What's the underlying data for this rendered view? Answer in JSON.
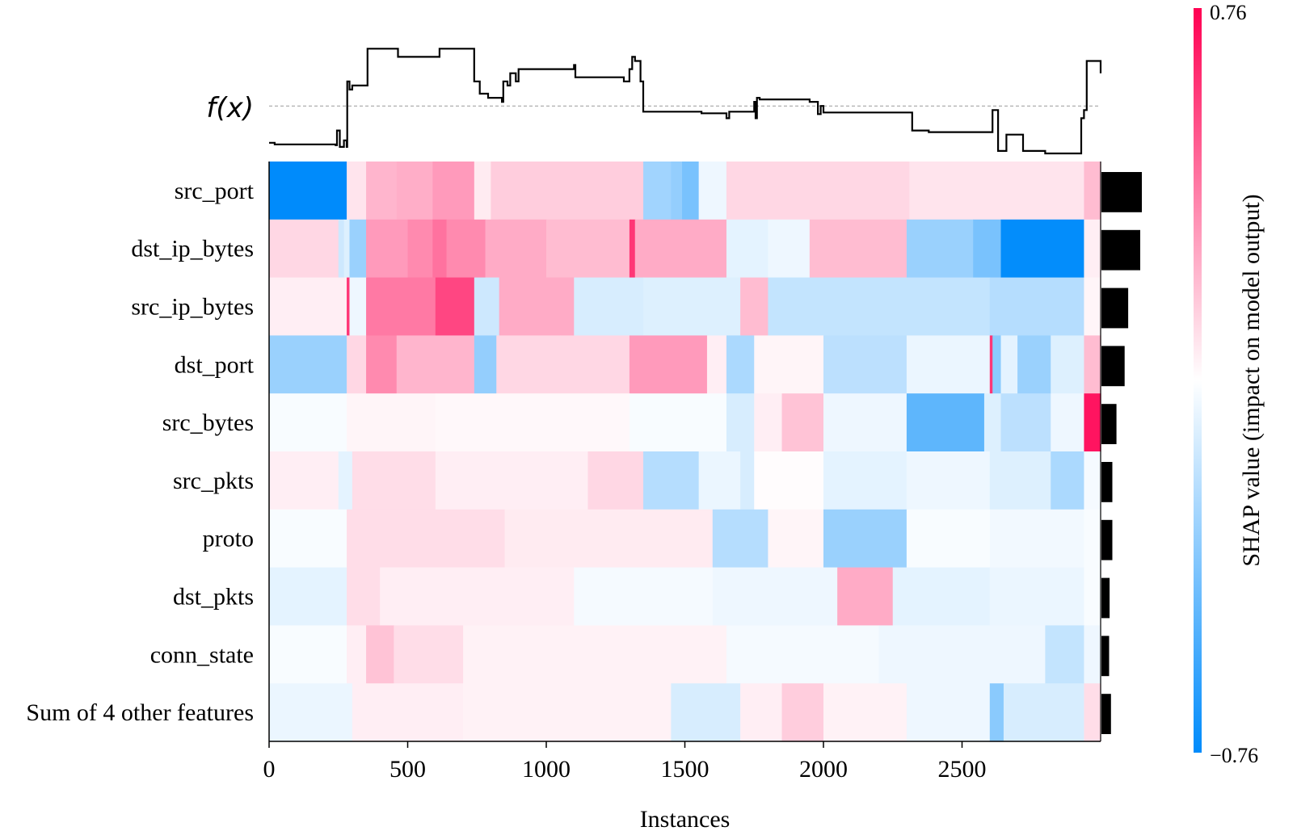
{
  "chart_data": {
    "type": "heatmap",
    "title": "",
    "xlabel": "Instances",
    "fx_label": "f(x)",
    "colorbar_label": "SHAP value (impact on model output)",
    "colorbar_max_label": "0.76",
    "colorbar_min_label": "−0.76",
    "color_range": [
      -0.76,
      0.76
    ],
    "colors": {
      "negative": "#008bfb",
      "positive": "#ff0052",
      "neutral": "#ffffff",
      "line": "#000000",
      "bar": "#000000",
      "baseline": "#999999"
    },
    "n_instances": 3000,
    "x_ticks": [
      0,
      500,
      1000,
      1500,
      2000,
      2500
    ],
    "x_tick_labels": [
      "0",
      "500",
      "1000",
      "1500",
      "2000",
      "2500"
    ],
    "fx_ylim": [
      -0.6,
      0.9
    ],
    "fx_base_value": 0.0,
    "fx_series": [
      [
        0,
        -0.45
      ],
      [
        20,
        -0.47
      ],
      [
        240,
        -0.48
      ],
      [
        245,
        -0.3
      ],
      [
        255,
        -0.5
      ],
      [
        270,
        -0.42
      ],
      [
        280,
        -0.5
      ],
      [
        282,
        0.3
      ],
      [
        290,
        0.2
      ],
      [
        300,
        0.25
      ],
      [
        350,
        0.25
      ],
      [
        355,
        0.7
      ],
      [
        460,
        0.7
      ],
      [
        465,
        0.6
      ],
      [
        610,
        0.6
      ],
      [
        615,
        0.7
      ],
      [
        735,
        0.7
      ],
      [
        740,
        0.3
      ],
      [
        760,
        0.15
      ],
      [
        790,
        0.1
      ],
      [
        840,
        0.05
      ],
      [
        845,
        0.3
      ],
      [
        860,
        0.25
      ],
      [
        870,
        0.4
      ],
      [
        890,
        0.3
      ],
      [
        900,
        0.45
      ],
      [
        1090,
        0.45
      ],
      [
        1100,
        0.5
      ],
      [
        1105,
        0.35
      ],
      [
        1220,
        0.35
      ],
      [
        1280,
        0.3
      ],
      [
        1300,
        0.45
      ],
      [
        1310,
        0.6
      ],
      [
        1320,
        0.55
      ],
      [
        1340,
        0.3
      ],
      [
        1350,
        -0.07
      ],
      [
        1555,
        -0.07
      ],
      [
        1560,
        -0.09
      ],
      [
        1640,
        -0.09
      ],
      [
        1650,
        -0.15
      ],
      [
        1660,
        -0.07
      ],
      [
        1745,
        -0.07
      ],
      [
        1750,
        0.05
      ],
      [
        1755,
        -0.15
      ],
      [
        1760,
        0.1
      ],
      [
        1770,
        0.08
      ],
      [
        1900,
        0.08
      ],
      [
        1950,
        0.05
      ],
      [
        1970,
        0.05
      ],
      [
        1980,
        -0.1
      ],
      [
        1990,
        0.0
      ],
      [
        2000,
        -0.08
      ],
      [
        2310,
        -0.08
      ],
      [
        2320,
        -0.3
      ],
      [
        2380,
        -0.32
      ],
      [
        2600,
        -0.32
      ],
      [
        2610,
        -0.05
      ],
      [
        2630,
        -0.55
      ],
      [
        2660,
        -0.35
      ],
      [
        2700,
        -0.35
      ],
      [
        2720,
        -0.55
      ],
      [
        2760,
        -0.55
      ],
      [
        2800,
        -0.58
      ],
      [
        2910,
        -0.58
      ],
      [
        2930,
        -0.15
      ],
      [
        2940,
        -0.05
      ],
      [
        2950,
        0.55
      ],
      [
        2970,
        0.55
      ],
      [
        3000,
        0.55
      ],
      [
        3005,
        0.4
      ]
    ],
    "features": [
      {
        "name": "src_port",
        "importance": 0.148,
        "segments": [
          [
            0,
            280,
            -0.76
          ],
          [
            280,
            350,
            0.08
          ],
          [
            350,
            460,
            0.22
          ],
          [
            460,
            590,
            0.24
          ],
          [
            590,
            740,
            0.3
          ],
          [
            740,
            800,
            0.06
          ],
          [
            800,
            890,
            0.15
          ],
          [
            890,
            1350,
            0.15
          ],
          [
            1350,
            1450,
            -0.28
          ],
          [
            1450,
            1490,
            -0.32
          ],
          [
            1490,
            1550,
            -0.4
          ],
          [
            1550,
            1650,
            -0.05
          ],
          [
            1650,
            2310,
            0.12
          ],
          [
            2310,
            2940,
            0.08
          ],
          [
            2940,
            3000,
            0.2
          ]
        ]
      },
      {
        "name": "dst_ip_bytes",
        "importance": 0.142,
        "segments": [
          [
            0,
            250,
            0.12
          ],
          [
            250,
            270,
            -0.15
          ],
          [
            270,
            290,
            -0.1
          ],
          [
            290,
            350,
            -0.3
          ],
          [
            350,
            500,
            0.3
          ],
          [
            500,
            590,
            0.35
          ],
          [
            590,
            640,
            0.42
          ],
          [
            640,
            780,
            0.35
          ],
          [
            780,
            830,
            0.25
          ],
          [
            830,
            1000,
            0.25
          ],
          [
            1000,
            1300,
            0.2
          ],
          [
            1300,
            1320,
            0.6
          ],
          [
            1320,
            1650,
            0.25
          ],
          [
            1650,
            1800,
            -0.08
          ],
          [
            1800,
            1950,
            -0.05
          ],
          [
            1950,
            2300,
            0.2
          ],
          [
            2300,
            2540,
            -0.3
          ],
          [
            2540,
            2640,
            -0.4
          ],
          [
            2640,
            2940,
            -0.75
          ],
          [
            2940,
            3000,
            0.05
          ]
        ]
      },
      {
        "name": "src_ip_bytes",
        "importance": 0.098,
        "segments": [
          [
            0,
            280,
            0.05
          ],
          [
            280,
            290,
            0.6
          ],
          [
            290,
            350,
            -0.05
          ],
          [
            350,
            600,
            0.4
          ],
          [
            600,
            740,
            0.55
          ],
          [
            740,
            830,
            -0.15
          ],
          [
            830,
            1100,
            0.25
          ],
          [
            1100,
            1350,
            -0.12
          ],
          [
            1350,
            1700,
            -0.1
          ],
          [
            1700,
            1800,
            0.2
          ],
          [
            1800,
            2600,
            -0.18
          ],
          [
            2600,
            2940,
            -0.22
          ],
          [
            2940,
            3000,
            0.03
          ]
        ]
      },
      {
        "name": "dst_port",
        "importance": 0.085,
        "segments": [
          [
            0,
            280,
            -0.3
          ],
          [
            280,
            350,
            0.12
          ],
          [
            350,
            460,
            0.35
          ],
          [
            460,
            740,
            0.22
          ],
          [
            740,
            820,
            -0.32
          ],
          [
            820,
            1050,
            0.12
          ],
          [
            1050,
            1300,
            0.12
          ],
          [
            1300,
            1580,
            0.3
          ],
          [
            1580,
            1650,
            0.05
          ],
          [
            1650,
            1750,
            -0.25
          ],
          [
            1750,
            2000,
            0.03
          ],
          [
            2000,
            2300,
            -0.2
          ],
          [
            2300,
            2600,
            -0.06
          ],
          [
            2600,
            2610,
            0.6
          ],
          [
            2610,
            2640,
            -0.35
          ],
          [
            2640,
            2700,
            -0.08
          ],
          [
            2700,
            2820,
            -0.3
          ],
          [
            2820,
            2940,
            -0.1
          ],
          [
            2940,
            3000,
            0.2
          ]
        ]
      },
      {
        "name": "src_bytes",
        "importance": 0.055,
        "segments": [
          [
            0,
            280,
            -0.02
          ],
          [
            280,
            600,
            0.03
          ],
          [
            600,
            1300,
            0.02
          ],
          [
            1300,
            1650,
            -0.02
          ],
          [
            1650,
            1750,
            -0.12
          ],
          [
            1750,
            1850,
            0.05
          ],
          [
            1850,
            2000,
            0.18
          ],
          [
            2000,
            2300,
            -0.05
          ],
          [
            2300,
            2580,
            -0.48
          ],
          [
            2580,
            2640,
            -0.1
          ],
          [
            2640,
            2820,
            -0.2
          ],
          [
            2820,
            2940,
            -0.05
          ],
          [
            2940,
            3000,
            0.7
          ]
        ]
      },
      {
        "name": "src_pkts",
        "importance": 0.04,
        "segments": [
          [
            0,
            250,
            0.05
          ],
          [
            250,
            300,
            -0.08
          ],
          [
            300,
            600,
            0.1
          ],
          [
            600,
            1150,
            0.05
          ],
          [
            1150,
            1350,
            0.12
          ],
          [
            1350,
            1550,
            -0.22
          ],
          [
            1550,
            1700,
            -0.06
          ],
          [
            1700,
            1750,
            -0.12
          ],
          [
            1750,
            2000,
            0.01
          ],
          [
            2000,
            2300,
            -0.08
          ],
          [
            2300,
            2600,
            -0.05
          ],
          [
            2600,
            2820,
            -0.1
          ],
          [
            2820,
            2940,
            -0.25
          ],
          [
            2940,
            3000,
            -0.03
          ]
        ]
      },
      {
        "name": "proto",
        "importance": 0.04,
        "segments": [
          [
            0,
            280,
            -0.02
          ],
          [
            280,
            850,
            0.1
          ],
          [
            850,
            1600,
            0.06
          ],
          [
            1600,
            1800,
            -0.22
          ],
          [
            1800,
            2000,
            0.03
          ],
          [
            2000,
            2300,
            -0.3
          ],
          [
            2300,
            2600,
            -0.02
          ],
          [
            2600,
            2940,
            -0.04
          ],
          [
            2940,
            3000,
            -0.02
          ]
        ]
      },
      {
        "name": "dst_pkts",
        "importance": 0.03,
        "segments": [
          [
            0,
            280,
            -0.08
          ],
          [
            280,
            400,
            0.1
          ],
          [
            400,
            600,
            0.05
          ],
          [
            600,
            1100,
            0.05
          ],
          [
            1100,
            1600,
            -0.03
          ],
          [
            1600,
            2050,
            -0.05
          ],
          [
            2050,
            2250,
            0.25
          ],
          [
            2250,
            2600,
            -0.08
          ],
          [
            2600,
            2940,
            -0.06
          ],
          [
            2940,
            3000,
            -0.02
          ]
        ]
      },
      {
        "name": "conn_state",
        "importance": 0.028,
        "segments": [
          [
            0,
            280,
            -0.02
          ],
          [
            280,
            350,
            0.05
          ],
          [
            350,
            450,
            0.18
          ],
          [
            450,
            700,
            0.1
          ],
          [
            700,
            1650,
            0.04
          ],
          [
            1650,
            2200,
            -0.03
          ],
          [
            2200,
            2800,
            -0.05
          ],
          [
            2800,
            2940,
            -0.18
          ],
          [
            2940,
            3000,
            -0.05
          ]
        ]
      },
      {
        "name": "Sum of 4 other features",
        "importance": 0.035,
        "segments": [
          [
            0,
            300,
            -0.06
          ],
          [
            300,
            700,
            0.05
          ],
          [
            700,
            1450,
            0.04
          ],
          [
            1450,
            1700,
            -0.12
          ],
          [
            1700,
            1850,
            0.05
          ],
          [
            1850,
            2000,
            0.15
          ],
          [
            2000,
            2300,
            0.04
          ],
          [
            2300,
            2600,
            -0.05
          ],
          [
            2600,
            2650,
            -0.35
          ],
          [
            2650,
            2940,
            -0.12
          ],
          [
            2940,
            3000,
            0.1
          ]
        ]
      }
    ]
  }
}
